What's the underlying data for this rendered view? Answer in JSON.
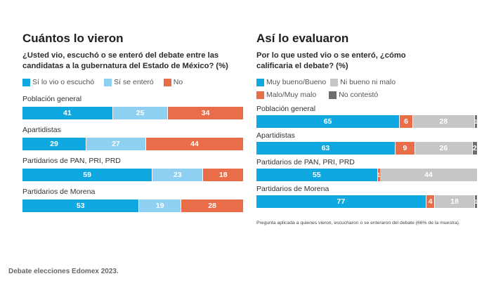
{
  "caption": "Debate elecciones Edomex 2023.",
  "chart_data": [
    {
      "type": "bar",
      "orientation": "horizontal-stacked-100",
      "title": "Cuántos lo vieron",
      "subtitle": "¿Usted vio, escuchó o se enteró del debate entre las candidatas a la gubernatura del Estado de México?  (%)",
      "legend_position": "top-left",
      "legend": [
        {
          "name": "Sí lo vio o escuchó",
          "color": "#0fa8e0"
        },
        {
          "name": "Sí se enteró",
          "color": "#8fd0f2"
        },
        {
          "name": "No",
          "color": "#ea6d4a"
        }
      ],
      "categories": [
        "Población general",
        "Apartidistas",
        "Partidarios de PAN, PRI, PRD",
        "Partidarios de Morena"
      ],
      "series": [
        {
          "name": "Sí lo vio o escuchó",
          "values": [
            41,
            29,
            59,
            53
          ]
        },
        {
          "name": "Sí se enteró",
          "values": [
            25,
            27,
            23,
            19
          ]
        },
        {
          "name": "No",
          "values": [
            34,
            44,
            18,
            28
          ]
        }
      ],
      "note": ""
    },
    {
      "type": "bar",
      "orientation": "horizontal-stacked-100",
      "title": "Así lo evaluaron",
      "subtitle": "Por lo que usted vio o se enteró, ¿cómo calificaria el debate?  (%)",
      "legend_position": "top-left",
      "legend": [
        {
          "name": "Muy bueno/Bueno",
          "color": "#0fa8e0"
        },
        {
          "name": "Ni bueno ni malo",
          "color": "#c6c6c6"
        },
        {
          "name": "Malo/Muy malo",
          "color": "#ea6d4a"
        },
        {
          "name": "No contestó",
          "color": "#6e6e6e"
        }
      ],
      "categories": [
        "Población general",
        "Apartidistas",
        "Partidarios de PAN, PRI, PRD",
        "Partidarios de Morena"
      ],
      "series": [
        {
          "name": "Muy bueno/Bueno",
          "color": "#0fa8e0",
          "values": [
            65,
            63,
            55,
            77
          ]
        },
        {
          "name": "Malo/Muy malo",
          "color": "#ea6d4a",
          "values": [
            6,
            9,
            1,
            4
          ]
        },
        {
          "name": "Ni bueno ni malo",
          "color": "#c6c6c6",
          "values": [
            28,
            26,
            44,
            18
          ]
        },
        {
          "name": "No contestó",
          "color": "#6e6e6e",
          "values": [
            1,
            2,
            0,
            1
          ]
        }
      ],
      "note": "Pregunta aplicada a quienes vieron, escucharon o se enteraron del debate (66% de la muestra)."
    }
  ]
}
